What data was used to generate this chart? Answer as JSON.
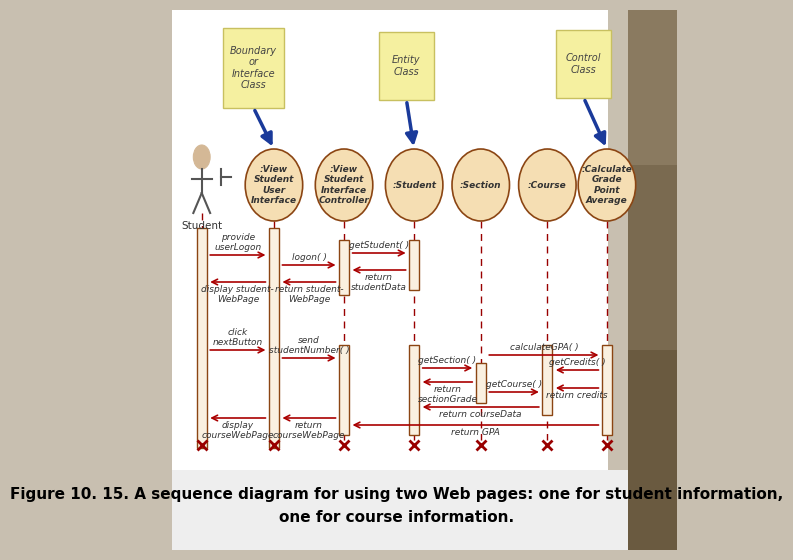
{
  "caption_line1": "Figure 10. 15. A sequence diagram for using two Web pages: one for student information,",
  "caption_line2": "one for course information.",
  "obj_labels": [
    ":View\nStudent\nUser\nInterface",
    ":View\nStudent\nInterface\nController",
    ":Student",
    ":Section",
    ":Course",
    ":Calculate\nGrade\nPoint\nAverage"
  ],
  "sticky_notes": [
    {
      "lines": [
        "Boundary",
        "or",
        "Interface",
        "Class"
      ],
      "target_actor": 0
    },
    {
      "lines": [
        "Entity",
        "Class"
      ],
      "target_actor": 2
    },
    {
      "lines": [
        "Control",
        "Class"
      ],
      "target_actor": 5
    }
  ],
  "bg_outer": "#c8bfb0",
  "bg_white": "#ffffff",
  "bg_caption": "#eeeeee",
  "right_panel1": "#7a6a50",
  "right_panel2": "#9a8a68",
  "right_panel3": "#b8a888",
  "sticky_fill": "#f5f0a0",
  "sticky_edge": "#c8c060",
  "obj_fill": "#f5deb3",
  "obj_edge": "#8b4513",
  "act_fill": "#faf0e0",
  "act_edge": "#8b4513",
  "arrow_blue": "#1a3a9a",
  "arrow_red": "#aa0000",
  "lifeline_color": "#990000",
  "text_color": "#333333"
}
